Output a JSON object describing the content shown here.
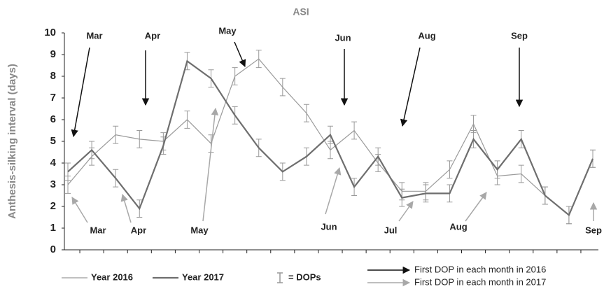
{
  "chart_data": {
    "type": "line",
    "title": "ASI",
    "y_label": "Anthesis-silking interval (days)",
    "categories": [
      null,
      null,
      null,
      null,
      null,
      null,
      null,
      null,
      null,
      null,
      null,
      null,
      null,
      null,
      null,
      null,
      null,
      null,
      null,
      null,
      null,
      null,
      null
    ],
    "series": [
      {
        "name": "Year 2016",
        "color": "#9a9a9a",
        "width": 1.2,
        "values": [
          3.0,
          4.3,
          5.3,
          5.1,
          5.0,
          6.0,
          4.9,
          8.0,
          8.8,
          7.5,
          6.3,
          4.6,
          5.5,
          4.0,
          2.7,
          2.7,
          3.7,
          5.8,
          3.4,
          3.5,
          2.5,
          1.6,
          4.2
        ],
        "errors": [
          0.4,
          0.4,
          0.4,
          0.4,
          0.4,
          0.4,
          0.4,
          0.4,
          0.4,
          0.4,
          0.4,
          0.4,
          0.4,
          0.4,
          0.4,
          0.4,
          0.4,
          0.4,
          0.4,
          0.4,
          0.4,
          0.4,
          0.4
        ]
      },
      {
        "name": "Year 2017",
        "color": "#6e6e6e",
        "width": 2.2,
        "values": [
          3.6,
          4.6,
          3.3,
          1.9,
          4.8,
          8.7,
          7.9,
          6.2,
          4.7,
          3.6,
          4.3,
          5.3,
          2.9,
          4.3,
          2.4,
          2.6,
          2.6,
          5.1,
          3.7,
          5.1,
          2.5,
          1.6,
          4.2
        ],
        "errors": [
          0.4,
          0.4,
          0.4,
          0.4,
          0.4,
          0.4,
          0.4,
          0.4,
          0.4,
          0.4,
          0.4,
          0.4,
          0.4,
          0.4,
          0.4,
          0.4,
          0.4,
          0.4,
          0.4,
          0.4,
          0.4,
          0.4,
          0.4
        ]
      }
    ],
    "ylim": [
      0,
      10
    ],
    "yticks": [
      0,
      1,
      2,
      3,
      4,
      5,
      6,
      7,
      8,
      9,
      10
    ],
    "error_legend": "= DOPs",
    "arrows_2016": {
      "name": "First DOP in each month in 2016",
      "color": "#111111",
      "labels": [
        "Mar",
        "Apr",
        "May",
        "Jun",
        "Aug",
        "Sep"
      ]
    },
    "arrows_2017": {
      "name": "First DOP in each month in 2017",
      "color": "#a8a8a8",
      "labels": [
        "Mar",
        "Apr",
        "May",
        "Jun",
        "Jul",
        "Aug",
        "Sep"
      ]
    }
  }
}
